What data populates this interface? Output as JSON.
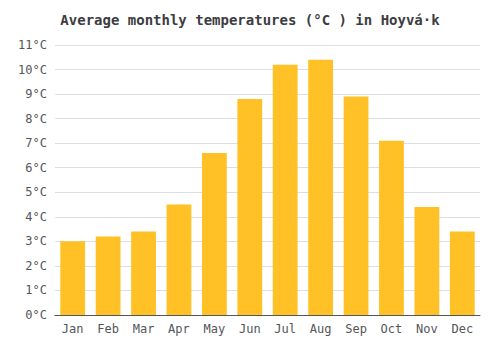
{
  "chart_data": {
    "type": "bar",
    "title": "Average monthly temperatures (°C ) in Hoyvá·k",
    "categories": [
      "Jan",
      "Feb",
      "Mar",
      "Apr",
      "May",
      "Jun",
      "Jul",
      "Aug",
      "Sep",
      "Oct",
      "Nov",
      "Dec"
    ],
    "values": [
      3.0,
      3.2,
      3.4,
      4.5,
      6.6,
      8.8,
      10.2,
      10.4,
      8.9,
      7.1,
      4.4,
      3.4
    ],
    "color": "#FFC125",
    "ylim": [
      0,
      11
    ],
    "yticks": [
      {
        "value": 0,
        "label": "0°C"
      },
      {
        "value": 1,
        "label": "1°C"
      },
      {
        "value": 2,
        "label": "2°C"
      },
      {
        "value": 3,
        "label": "3°C"
      },
      {
        "value": 4,
        "label": "4°C"
      },
      {
        "value": 5,
        "label": "5°C"
      },
      {
        "value": 6,
        "label": "6°C"
      },
      {
        "value": 7,
        "label": "7°C"
      },
      {
        "value": 8,
        "label": "8°C"
      },
      {
        "value": 9,
        "label": "9°C"
      },
      {
        "value": 10,
        "label": "10°C"
      },
      {
        "value": 11,
        "label": "11°C"
      }
    ],
    "grid": true
  }
}
